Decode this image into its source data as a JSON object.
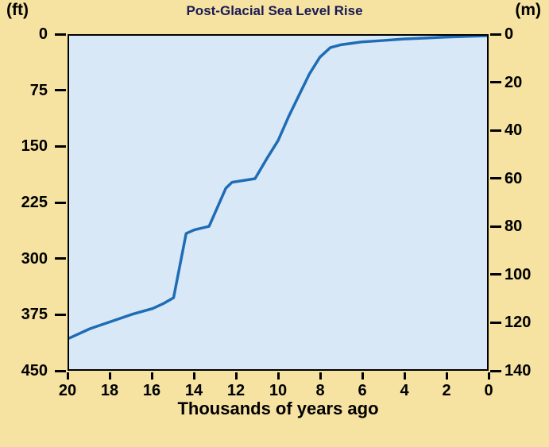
{
  "chart_data": {
    "type": "line",
    "title": "Post-Glacial Sea Level Rise",
    "xlabel": "Thousands of years ago",
    "x_range": [
      20,
      0
    ],
    "x_ticks": [
      20,
      18,
      16,
      14,
      12,
      10,
      8,
      6,
      4,
      2,
      0
    ],
    "left_axis": {
      "unit": "(ft)",
      "ticks": [
        0,
        75,
        150,
        225,
        300,
        375,
        450
      ],
      "range": [
        0,
        450
      ],
      "direction": "depth below present, increasing downward"
    },
    "right_axis": {
      "unit": "(m)",
      "ticks": [
        0,
        20,
        40,
        60,
        80,
        100,
        120,
        140
      ],
      "range": [
        0,
        140
      ],
      "direction": "depth below present, increasing downward"
    },
    "grid": false,
    "legend": false,
    "series": [
      {
        "name": "sea_level_depth_below_present_m",
        "points": [
          [
            20,
            127
          ],
          [
            19,
            123
          ],
          [
            18,
            120
          ],
          [
            17,
            117
          ],
          [
            16,
            114.5
          ],
          [
            15.5,
            112.5
          ],
          [
            15,
            110
          ],
          [
            14.4,
            83
          ],
          [
            14,
            81.5
          ],
          [
            13.3,
            80
          ],
          [
            12.5,
            64
          ],
          [
            12.2,
            61.5
          ],
          [
            11.1,
            60
          ],
          [
            10.5,
            51
          ],
          [
            10,
            44
          ],
          [
            9.5,
            34
          ],
          [
            9,
            25
          ],
          [
            8.5,
            16
          ],
          [
            8,
            9
          ],
          [
            7.5,
            5
          ],
          [
            7,
            3.8
          ],
          [
            6.5,
            3.2
          ],
          [
            6,
            2.6
          ],
          [
            5,
            2
          ],
          [
            4,
            1.4
          ],
          [
            3,
            1
          ],
          [
            2,
            0.6
          ],
          [
            1,
            0.3
          ],
          [
            0,
            0
          ]
        ]
      }
    ]
  },
  "colors": {
    "background": "#f6e3a1",
    "plot_background": "#d8e8f6",
    "line": "#1e6cb5",
    "axis": "#000000"
  }
}
